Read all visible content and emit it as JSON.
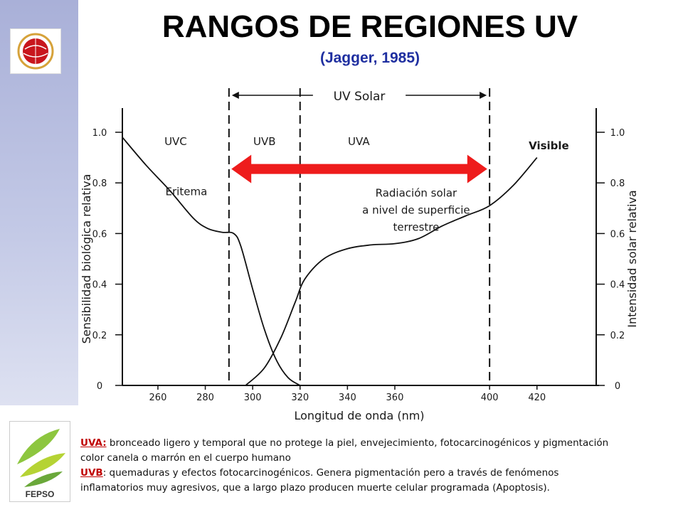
{
  "slide": {
    "title": "RANGOS DE REGIONES UV",
    "subtitle": "(Jagger, 1985)",
    "logo_bottom_text": "FEPSO"
  },
  "colors": {
    "title": "#000000",
    "subtitle": "#1f2fa0",
    "arrow": "#ee1c1c",
    "note_term": "#c00000",
    "sidebar": "#a9b0d8"
  },
  "chart_data": {
    "type": "line",
    "xlabel": "Longitud de onda (nm)",
    "ylabel_left": "Sensibilidad biológica relativa",
    "ylabel_right": "Intensidad solar relativa",
    "xlim": [
      245,
      445
    ],
    "ylim": [
      0,
      1.0
    ],
    "x_ticks": [
      "260",
      "280",
      "300",
      "320",
      "340",
      "360",
      "400",
      "420"
    ],
    "y_ticks_left": [
      "0",
      "0.2",
      "0.4",
      "0.6",
      "0.8",
      "1.0"
    ],
    "y_ticks_right": [
      "0",
      "0.2",
      "0.4",
      "0.6",
      "0.8",
      "1.0"
    ],
    "regions": [
      {
        "label": "UVC",
        "from": 245,
        "to": 290
      },
      {
        "label": "UVB",
        "from": 290,
        "to": 320
      },
      {
        "label": "UVA",
        "from": 320,
        "to": 400
      }
    ],
    "region_bounds": [
      290,
      320,
      400
    ],
    "bracket_label": "UV Solar",
    "visible_label": "Visible",
    "annotations": {
      "eritema": "Eritema",
      "solar": [
        "Radiación solar",
        "a nivel de superficie",
        "terrestre"
      ]
    },
    "series": [
      {
        "name": "Eritema",
        "x": [
          245,
          255,
          265,
          275,
          281,
          287,
          292,
          295,
          300,
          305,
          310,
          315,
          320
        ],
        "y": [
          0.98,
          0.87,
          0.77,
          0.66,
          0.62,
          0.605,
          0.6,
          0.55,
          0.38,
          0.22,
          0.1,
          0.03,
          0.0
        ]
      },
      {
        "name": "Radiación solar a nivel de superficie terrestre",
        "x": [
          297,
          305,
          312,
          318,
          322,
          330,
          340,
          350,
          360,
          370,
          380,
          390,
          400,
          410,
          420
        ],
        "y": [
          0.0,
          0.07,
          0.19,
          0.33,
          0.42,
          0.5,
          0.54,
          0.555,
          0.56,
          0.58,
          0.63,
          0.67,
          0.71,
          0.79,
          0.9
        ]
      }
    ],
    "arrow": {
      "from": 291,
      "to": 399
    }
  },
  "notes": [
    {
      "term": "UVA:",
      "text": " bronceado ligero y temporal que no protege la piel, envejecimiento,  fotocarcinogénicos y pigmentación",
      "cont": " color canela o marrón en el cuerpo humano"
    },
    {
      "term": "UVB",
      "text": ": quemaduras y efectos fotocarcinogénicos. Genera pigmentación pero a través de fenómenos",
      "cont": "inflamatorios muy agresivos, que a largo plazo producen muerte celular programada (Apoptosis)."
    }
  ]
}
